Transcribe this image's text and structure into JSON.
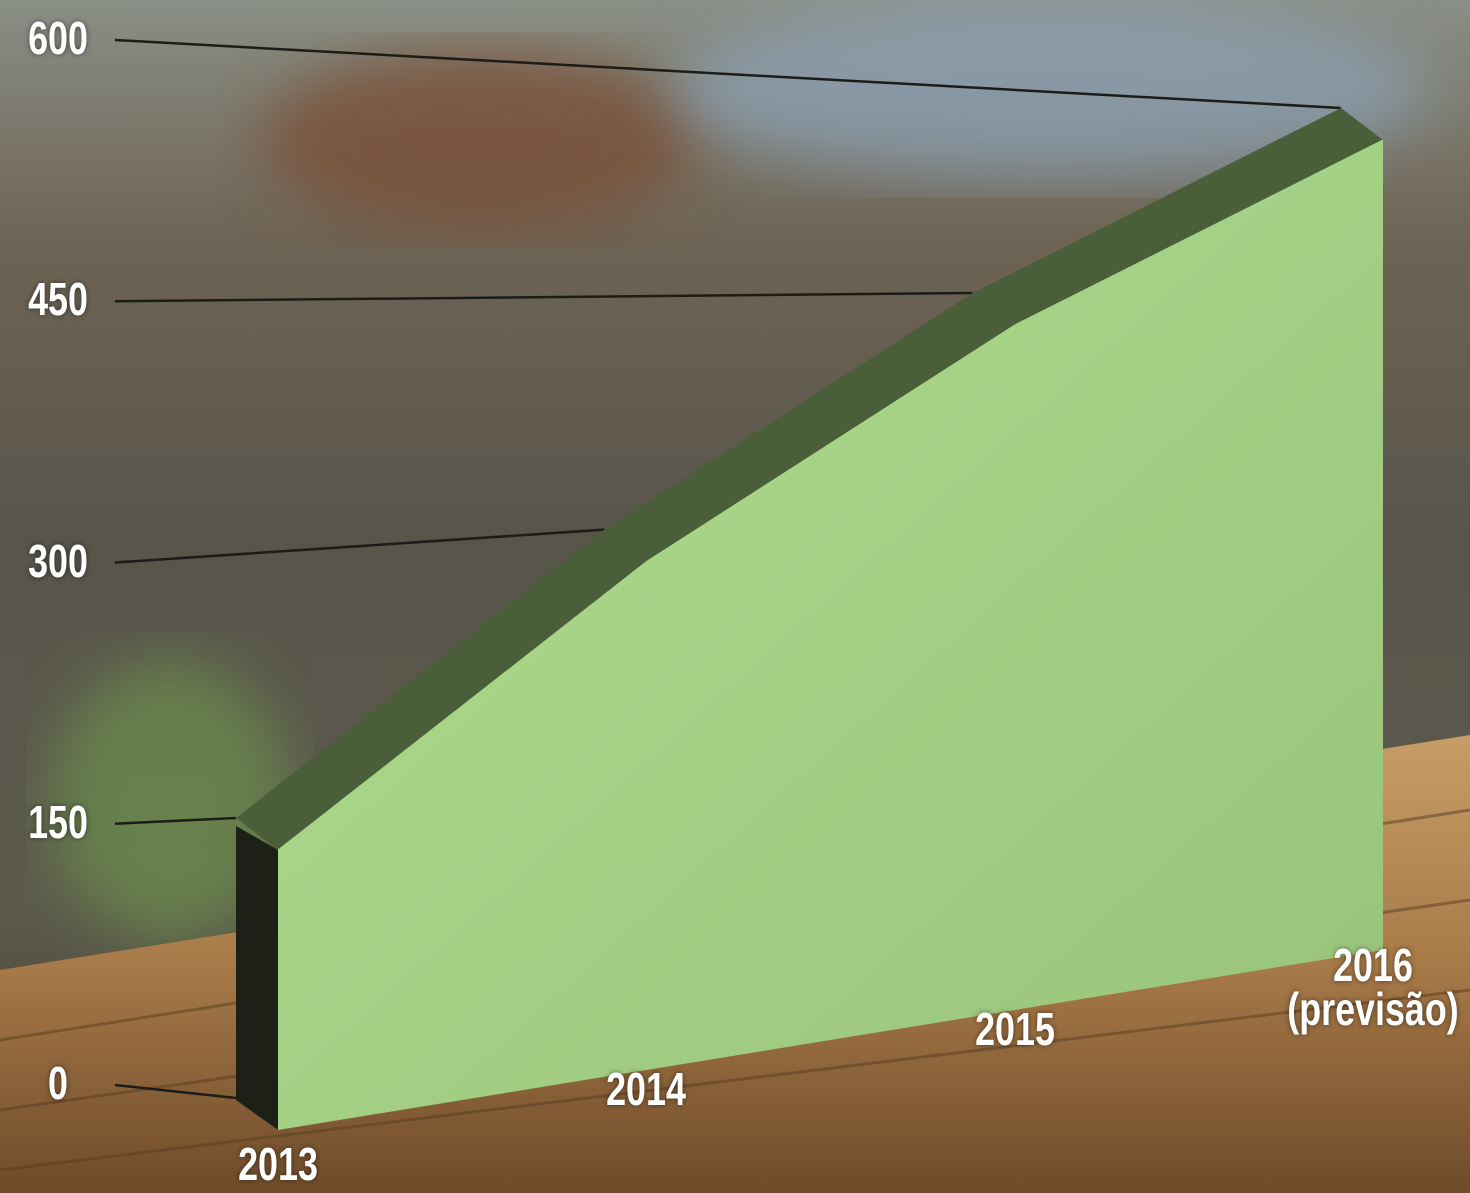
{
  "chart_data": {
    "type": "area",
    "categories": [
      "2013",
      "2014",
      "2015",
      "2016 (previsão)"
    ],
    "values": [
      150,
      300,
      450,
      600
    ],
    "color": "#a6d487",
    "ylim": [
      0,
      600
    ],
    "yticks": [
      0,
      150,
      300,
      450,
      600
    ],
    "grid": true
  }
}
